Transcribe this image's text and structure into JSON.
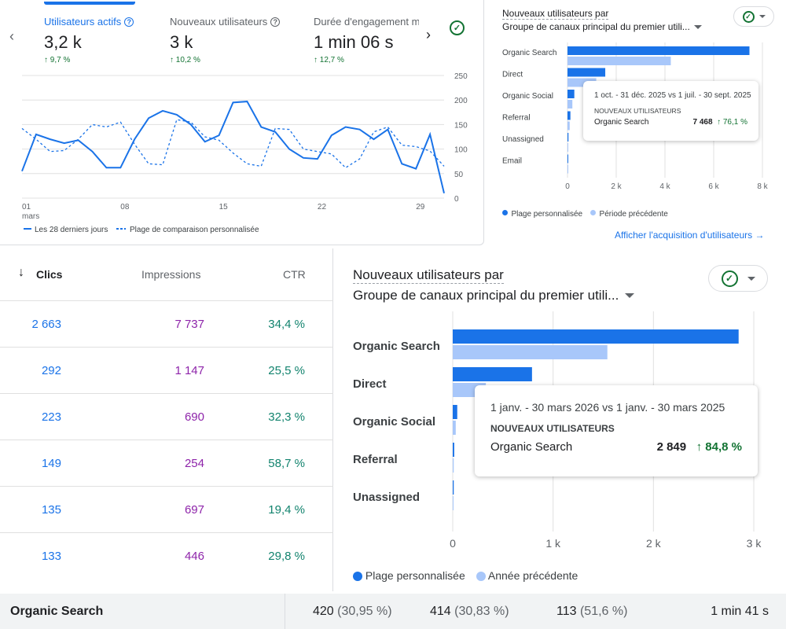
{
  "metrics": [
    {
      "label": "Utilisateurs actifs",
      "value": "3,2 k",
      "delta": "9,7 %"
    },
    {
      "label": "Nouveaux utilisateurs",
      "value": "3 k",
      "delta": "10,2 %"
    },
    {
      "label": "Durée d'engagement m",
      "value": "1 min 06 s",
      "delta": "12,7 %"
    }
  ],
  "line_chart": {
    "legend_current": "Les 28 derniers jours",
    "legend_compare": "Plage de comparaison personnalisée",
    "x_ticks": [
      "01",
      "08",
      "15",
      "22",
      "29"
    ],
    "x_month": "mars"
  },
  "small_bar_panel": {
    "title_line1": "Nouveaux utilisateurs par",
    "title_line2": "Groupe de canaux principal du premier utili...",
    "tooltip_period": "1 oct. - 31 déc. 2025 vs 1 juil. - 30 sept. 2025",
    "tooltip_heading": "NOUVEAUX UTILISATEURS",
    "tooltip_label": "Organic Search",
    "tooltip_value": "7 468",
    "tooltip_delta": "76,1 %",
    "legend_current": "Plage personnalisée",
    "legend_previous": "Période précédente",
    "link": "Afficher l'acquisition d'utilisateurs"
  },
  "big_bar_panel": {
    "title_line1": "Nouveaux utilisateurs par",
    "title_line2": "Groupe de canaux principal du premier utili...",
    "tooltip_period": "1 janv. - 30 mars 2026 vs 1 janv. - 30 mars 2025",
    "tooltip_heading": "NOUVEAUX UTILISATEURS",
    "tooltip_label": "Organic Search",
    "tooltip_value": "2 849",
    "tooltip_delta": "84,8 %",
    "legend_current": "Plage personnalisée",
    "legend_previous": "Année précédente"
  },
  "table": {
    "headers": {
      "clics": "Clics",
      "impressions": "Impressions",
      "ctr": "CTR"
    },
    "rows": [
      {
        "clics": "2 663",
        "impressions": "7 737",
        "ctr": "34,4 %"
      },
      {
        "clics": "292",
        "impressions": "1 147",
        "ctr": "25,5 %"
      },
      {
        "clics": "223",
        "impressions": "690",
        "ctr": "32,3 %"
      },
      {
        "clics": "149",
        "impressions": "254",
        "ctr": "58,7 %"
      },
      {
        "clics": "135",
        "impressions": "697",
        "ctr": "19,4 %"
      },
      {
        "clics": "133",
        "impressions": "446",
        "ctr": "29,8 %"
      }
    ]
  },
  "bottom_row": {
    "label": "Organic Search",
    "v1": "420",
    "p1": "(30,95 %)",
    "v2": "414",
    "p2": "(30,83 %)",
    "v3": "113",
    "p3": "(51,6 %)",
    "v4": "1 min 41 s"
  },
  "colors": {
    "current": "#1a73e8",
    "previous": "#a8c7fa",
    "positive": "#137333"
  },
  "chart_data": [
    {
      "type": "line",
      "x": [
        1,
        2,
        3,
        4,
        5,
        6,
        7,
        8,
        9,
        10,
        11,
        12,
        13,
        14,
        15,
        16,
        17,
        18,
        19,
        20,
        21,
        22,
        23,
        24,
        25,
        26,
        27,
        28,
        29,
        30,
        31
      ],
      "x_ticks": [
        "01",
        "08",
        "15",
        "22",
        "29"
      ],
      "ylim": [
        0,
        250
      ],
      "y_ticks": [
        0,
        50,
        100,
        150,
        200,
        250
      ],
      "series": [
        {
          "name": "Les 28 derniers jours",
          "values": [
            55,
            130,
            120,
            112,
            118,
            95,
            62,
            62,
            120,
            163,
            178,
            170,
            150,
            115,
            128,
            195,
            197,
            145,
            135,
            100,
            82,
            80,
            128,
            145,
            140,
            120,
            140,
            70,
            60,
            130,
            10
          ]
        },
        {
          "name": "Plage de comparaison personnalisée",
          "values": [
            142,
            120,
            95,
            97,
            120,
            150,
            145,
            155,
            110,
            70,
            68,
            160,
            155,
            125,
            118,
            92,
            70,
            65,
            142,
            140,
            100,
            95,
            90,
            62,
            80,
            135,
            145,
            108,
            105,
            96,
            65
          ]
        }
      ],
      "legend": "bottom"
    },
    {
      "type": "bar",
      "orientation": "horizontal",
      "categories": [
        "Organic Search",
        "Direct",
        "Organic Social",
        "Referral",
        "Unassigned",
        "Email"
      ],
      "xlim": [
        0,
        8000
      ],
      "x_ticks": [
        "0",
        "2 k",
        "4 k",
        "6 k",
        "8 k"
      ],
      "series": [
        {
          "name": "Plage personnalisée",
          "values": [
            7468,
            1550,
            280,
            120,
            40,
            10
          ]
        },
        {
          "name": "Période précédente",
          "values": [
            4240,
            1180,
            200,
            90,
            30,
            10
          ]
        }
      ],
      "legend": "bottom"
    },
    {
      "type": "bar",
      "orientation": "horizontal",
      "categories": [
        "Organic Search",
        "Direct",
        "Organic Social",
        "Referral",
        "Unassigned"
      ],
      "xlim": [
        0,
        3000
      ],
      "x_ticks": [
        "0",
        "1 k",
        "2 k",
        "3 k"
      ],
      "series": [
        {
          "name": "Plage personnalisée",
          "values": [
            2849,
            790,
            45,
            15,
            10
          ]
        },
        {
          "name": "Année précédente",
          "values": [
            1541,
            330,
            30,
            10,
            6
          ]
        }
      ],
      "legend": "bottom"
    }
  ]
}
